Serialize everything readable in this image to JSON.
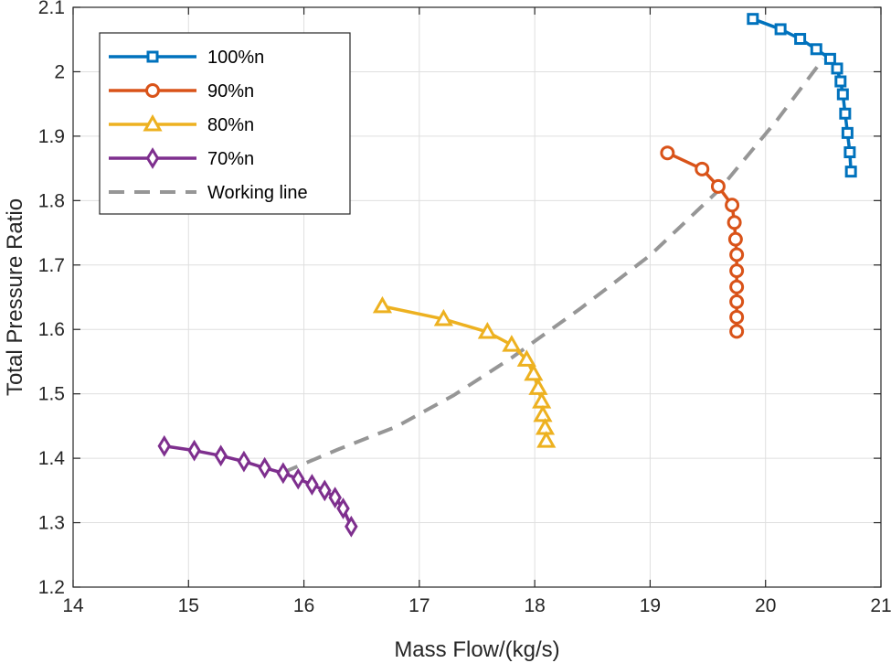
{
  "chart_data": {
    "type": "line",
    "title": "",
    "xlabel": "Mass Flow/(kg/s)",
    "ylabel": "Total Pressure Ratio",
    "xlim": [
      14,
      21
    ],
    "ylim": [
      1.2,
      2.1
    ],
    "xticks": [
      14,
      15,
      16,
      17,
      18,
      19,
      20,
      21
    ],
    "yticks": [
      1.2,
      1.3,
      1.4,
      1.5,
      1.6,
      1.7,
      1.8,
      1.9,
      2,
      2.1
    ],
    "xtick_labels": [
      "14",
      "15",
      "16",
      "17",
      "18",
      "19",
      "20",
      "21"
    ],
    "ytick_labels": [
      "1.2",
      "1.3",
      "1.4",
      "1.5",
      "1.6",
      "1.7",
      "1.8",
      "1.9",
      "2",
      "2.1"
    ],
    "grid": true,
    "legend_position": "top-left",
    "series": [
      {
        "name": "100%n",
        "color": "#0072BD",
        "marker": "square",
        "dashed": false,
        "x": [
          19.89,
          20.13,
          20.3,
          20.44,
          20.56,
          20.62,
          20.65,
          20.67,
          20.69,
          20.71,
          20.73,
          20.74
        ],
        "y": [
          2.082,
          2.066,
          2.051,
          2.035,
          2.02,
          2.005,
          1.985,
          1.965,
          1.935,
          1.905,
          1.875,
          1.845
        ]
      },
      {
        "name": "90%n",
        "color": "#D95319",
        "marker": "circle",
        "dashed": false,
        "x": [
          19.15,
          19.45,
          19.59,
          19.71,
          19.73,
          19.74,
          19.75,
          19.75,
          19.75,
          19.75,
          19.75,
          19.75
        ],
        "y": [
          1.874,
          1.849,
          1.822,
          1.793,
          1.766,
          1.74,
          1.716,
          1.691,
          1.666,
          1.643,
          1.619,
          1.597
        ]
      },
      {
        "name": "80%n",
        "color": "#EDB120",
        "marker": "triangle",
        "dashed": false,
        "x": [
          16.68,
          17.21,
          17.59,
          17.8,
          17.93,
          17.99,
          18.03,
          18.06,
          18.07,
          18.09,
          18.1
        ],
        "y": [
          1.636,
          1.616,
          1.596,
          1.576,
          1.553,
          1.531,
          1.509,
          1.488,
          1.467,
          1.447,
          1.427
        ]
      },
      {
        "name": "70%n",
        "color": "#7E2F8E",
        "marker": "diamond",
        "dashed": false,
        "x": [
          14.79,
          15.05,
          15.28,
          15.48,
          15.66,
          15.82,
          15.95,
          16.07,
          16.18,
          16.27,
          16.34,
          16.41
        ],
        "y": [
          1.419,
          1.412,
          1.404,
          1.395,
          1.385,
          1.377,
          1.368,
          1.359,
          1.35,
          1.339,
          1.322,
          1.294
        ]
      },
      {
        "name": "Working line",
        "color": "#969696",
        "marker": "none",
        "dashed": true,
        "x": [
          15.82,
          16.3,
          16.8,
          17.3,
          17.8,
          18.4,
          19.0,
          19.6,
          20.1,
          20.5
        ],
        "y": [
          1.378,
          1.414,
          1.449,
          1.498,
          1.556,
          1.633,
          1.715,
          1.817,
          1.925,
          2.02
        ]
      }
    ]
  }
}
